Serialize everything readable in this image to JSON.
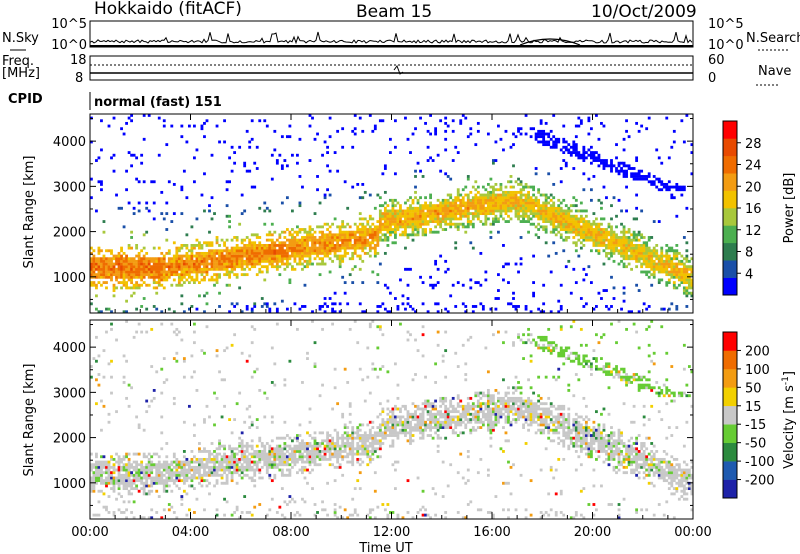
{
  "header": {
    "station": "Hokkaido (fitACF)",
    "beam": "Beam 15",
    "date": "10/Oct/2009"
  },
  "status_panels": {
    "nsky_label": "N.Sky",
    "nsearch_label": "N.Search",
    "noise_ticks": [
      "10^5",
      "10^0"
    ],
    "freq_label": "Freq.",
    "freq_unit": "[MHz]",
    "freq_ticks": [
      "18",
      "8"
    ],
    "nave_label": "Nave",
    "nave_ticks": [
      "60",
      "0"
    ],
    "cpid_label": "CPID",
    "cpid_value": "normal (fast) 151"
  },
  "chart_data": [
    {
      "type": "heatmap",
      "name": "power",
      "ylabel": "Slant Range [km]",
      "ylim": [
        200,
        4600
      ],
      "yticks": [
        "4000",
        "3000",
        "2000",
        "1000"
      ],
      "colorbar_label": "Power [dB]",
      "colorbar_ticks": [
        "28",
        "24",
        "20",
        "16",
        "12",
        "8",
        "4"
      ],
      "colors": [
        "#0000ff",
        "#1a4fa8",
        "#2e7d4f",
        "#4caf50",
        "#a8c83c",
        "#f2c200",
        "#f39c12",
        "#ef6c00",
        "#e84a00",
        "#ff0000"
      ],
      "bands": [
        {
          "t": [
            0.0,
            3.0
          ],
          "r": [
            1000,
            1400
          ],
          "p": 28
        },
        {
          "t": [
            3.0,
            8.0
          ],
          "r": [
            1100,
            1800
          ],
          "p": 27
        },
        {
          "t": [
            8.0,
            11.5
          ],
          "r": [
            1500,
            2100
          ],
          "p": 26
        },
        {
          "t": [
            11.5,
            17.0
          ],
          "r": [
            2100,
            2900
          ],
          "p": 24
        },
        {
          "t": [
            17.0,
            24.0
          ],
          "r": [
            700,
            2900
          ],
          "p": 23
        }
      ]
    },
    {
      "type": "heatmap",
      "name": "velocity",
      "ylabel": "Slant Range [km]",
      "ylim": [
        200,
        4600
      ],
      "yticks": [
        "4000",
        "3000",
        "2000",
        "1000"
      ],
      "colorbar_label": "Velocity [m s",
      "colorbar_unit_exp": "-1",
      "colorbar_unit_close": "]",
      "colorbar_ticks": [
        "200",
        "100",
        "50",
        "15",
        "-15",
        "-50",
        "-100",
        "-200"
      ],
      "colors": [
        "#1e22a8",
        "#1e5ab0",
        "#2b8a3e",
        "#66cc33",
        "#c8c8c8",
        "#f2d000",
        "#f39c12",
        "#ef6c00",
        "#ff0000"
      ],
      "xlabel": "Time UT",
      "xticks": [
        "00:00",
        "04:00",
        "08:00",
        "12:00",
        "16:00",
        "20:00",
        "00:00"
      ],
      "xlim": [
        0,
        24
      ]
    }
  ]
}
